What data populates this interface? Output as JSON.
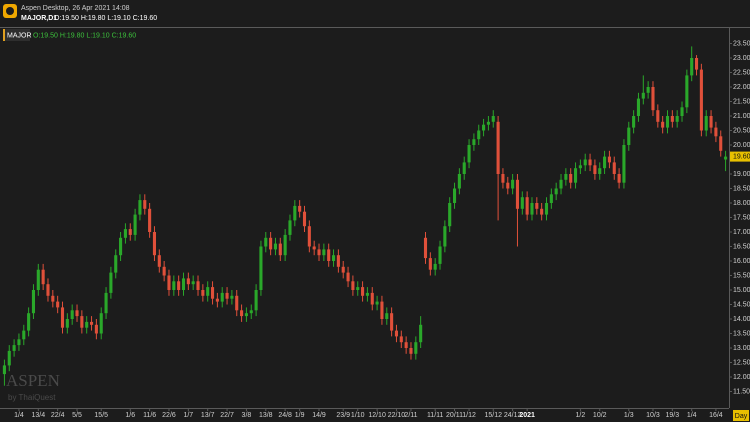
{
  "header": {
    "app_title": "Aspen Desktop, 26 Apr 2021 14:08",
    "symbol_timeframe": "MAJOR,D1",
    "ohlc_text": "O:19.50 H:19.80 L:19.10 C:19.60"
  },
  "watermark": {
    "brand": "ASPEN",
    "byline": "by ThaiQuest"
  },
  "timeframe_button": "Day",
  "chart_data": {
    "type": "candlestick",
    "categories": [
      null,
      null,
      null,
      "1/4",
      null,
      null,
      null,
      "13/4",
      null,
      null,
      null,
      "22/4",
      null,
      null,
      null,
      "5/5",
      null,
      null,
      null,
      null,
      "15/5",
      null,
      null,
      null,
      null,
      null,
      "1/6",
      null,
      null,
      null,
      "11/6",
      null,
      null,
      null,
      "22/6",
      null,
      null,
      null,
      "1/7",
      null,
      null,
      null,
      "13/7",
      null,
      null,
      null,
      "22/7",
      null,
      null,
      null,
      "3/8",
      null,
      null,
      null,
      "13/8",
      null,
      null,
      null,
      "24/8",
      null,
      null,
      "1/9",
      null,
      null,
      null,
      "14/9",
      null,
      null,
      null,
      null,
      "23/9",
      null,
      null,
      "1/10",
      null,
      null,
      null,
      "12/10",
      null,
      null,
      null,
      "22/10",
      null,
      null,
      "2/11",
      null,
      null,
      null,
      null,
      "11/11",
      null,
      null,
      null,
      "20/11",
      null,
      null,
      "1/12",
      null,
      null,
      null,
      null,
      "15/12",
      null,
      null,
      null,
      "24/12",
      null,
      null,
      "2021",
      null,
      null,
      null,
      null,
      null,
      null,
      null,
      null,
      null,
      null,
      "1/2",
      null,
      null,
      null,
      "10/2",
      null,
      null,
      null,
      null,
      null,
      "1/3",
      null,
      null,
      null,
      null,
      "10/3",
      null,
      null,
      null,
      "19/3",
      null,
      null,
      null,
      "1/4",
      null,
      null,
      null,
      null,
      "16/4",
      null,
      null
    ],
    "series": [
      {
        "name": "MAJOR",
        "open": [
          12.1,
          12.4,
          12.9,
          13.1,
          13.3,
          13.6,
          14.2,
          15.0,
          15.7,
          15.2,
          14.8,
          14.6,
          14.4,
          13.7,
          14.0,
          14.3,
          14.1,
          13.7,
          13.9,
          13.8,
          13.5,
          14.2,
          14.9,
          15.6,
          16.2,
          16.8,
          17.1,
          16.9,
          17.6,
          18.1,
          17.8,
          17.0,
          16.2,
          15.8,
          15.5,
          15.0,
          15.3,
          15.0,
          15.4,
          15.2,
          15.3,
          15.0,
          14.8,
          15.1,
          14.7,
          14.6,
          14.9,
          14.7,
          14.8,
          14.3,
          14.1,
          14.2,
          14.3,
          15.0,
          16.5,
          16.8,
          16.4,
          16.6,
          16.2,
          16.9,
          17.4,
          17.9,
          17.7,
          17.2,
          16.5,
          16.4,
          16.2,
          16.4,
          16.0,
          16.2,
          15.8,
          15.6,
          15.3,
          15.0,
          15.1,
          14.8,
          14.9,
          14.5,
          14.6,
          14.0,
          14.2,
          13.6,
          13.4,
          13.2,
          13.0,
          12.8,
          13.2,
          16.8,
          16.1,
          15.7,
          15.9,
          16.5,
          17.2,
          18.0,
          18.5,
          19.0,
          19.4,
          20.0,
          20.2,
          20.5,
          20.7,
          20.8,
          20.8,
          19.0,
          18.7,
          18.5,
          18.8,
          17.8,
          18.2,
          17.6,
          18.0,
          17.8,
          17.6,
          18.0,
          18.3,
          18.5,
          18.8,
          19.0,
          18.7,
          19.2,
          19.3,
          19.5,
          19.3,
          19.0,
          19.2,
          19.6,
          19.4,
          19.0,
          18.7,
          20.0,
          20.6,
          21.0,
          21.6,
          21.8,
          22.0,
          21.2,
          20.8,
          20.6,
          21.0,
          20.8,
          21.0,
          21.3,
          22.4,
          23.0,
          22.6,
          20.5,
          21.0,
          20.6,
          20.3,
          19.5
        ],
        "high": [
          12.6,
          13.1,
          13.3,
          13.5,
          13.8,
          14.4,
          15.2,
          15.9,
          15.9,
          15.4,
          15.0,
          14.8,
          14.6,
          14.2,
          14.5,
          14.5,
          14.3,
          14.1,
          14.1,
          14.0,
          14.4,
          15.1,
          15.8,
          16.4,
          17.0,
          17.3,
          17.3,
          17.8,
          18.3,
          18.3,
          18.0,
          17.2,
          16.4,
          16.0,
          15.7,
          15.5,
          15.5,
          15.6,
          15.6,
          15.5,
          15.5,
          15.2,
          15.3,
          15.3,
          14.9,
          15.1,
          15.1,
          15.0,
          15.0,
          14.5,
          14.4,
          14.5,
          15.2,
          16.7,
          17.0,
          17.0,
          16.8,
          16.8,
          17.1,
          17.6,
          18.1,
          18.1,
          17.9,
          17.4,
          16.7,
          16.6,
          16.6,
          16.6,
          16.4,
          16.4,
          16.0,
          15.8,
          15.5,
          15.3,
          15.3,
          15.1,
          15.1,
          14.8,
          14.8,
          14.4,
          14.4,
          13.8,
          13.6,
          13.4,
          13.2,
          13.4,
          14.1,
          17.0,
          16.3,
          16.1,
          16.7,
          17.4,
          18.2,
          18.7,
          19.2,
          19.6,
          20.2,
          20.4,
          20.7,
          20.9,
          21.0,
          21.2,
          21.0,
          19.2,
          18.9,
          19.0,
          19.0,
          18.4,
          18.4,
          18.2,
          18.2,
          18.0,
          18.2,
          18.5,
          18.7,
          19.0,
          19.2,
          19.2,
          19.4,
          19.5,
          19.7,
          19.7,
          19.5,
          19.4,
          19.8,
          19.8,
          19.6,
          19.2,
          20.2,
          20.8,
          21.2,
          21.8,
          22.4,
          22.2,
          22.2,
          21.4,
          21.0,
          21.2,
          21.2,
          21.2,
          21.5,
          22.6,
          23.4,
          23.1,
          22.8,
          21.2,
          21.2,
          20.8,
          20.5,
          19.8
        ],
        "low": [
          11.7,
          12.2,
          12.7,
          12.9,
          13.1,
          13.4,
          14.0,
          14.8,
          15.0,
          14.6,
          14.4,
          14.2,
          13.5,
          13.5,
          13.8,
          13.9,
          13.5,
          13.5,
          13.6,
          13.3,
          13.3,
          14.0,
          14.7,
          15.4,
          16.0,
          16.6,
          16.7,
          16.7,
          17.4,
          17.6,
          16.8,
          16.0,
          15.6,
          15.3,
          14.8,
          14.8,
          14.8,
          14.8,
          15.0,
          15.0,
          14.8,
          14.6,
          14.6,
          14.5,
          14.4,
          14.4,
          14.5,
          14.5,
          14.1,
          13.9,
          13.9,
          14.0,
          14.1,
          14.8,
          16.3,
          16.2,
          16.2,
          16.0,
          16.0,
          16.7,
          17.2,
          17.5,
          17.0,
          16.3,
          16.2,
          16.0,
          16.0,
          15.8,
          15.8,
          15.6,
          15.4,
          15.1,
          14.8,
          14.8,
          14.6,
          14.6,
          14.3,
          14.3,
          13.8,
          13.8,
          13.4,
          13.2,
          13.0,
          12.8,
          12.6,
          12.6,
          13.0,
          15.9,
          15.5,
          15.5,
          15.7,
          16.3,
          17.0,
          17.8,
          18.3,
          18.8,
          19.2,
          19.8,
          20.0,
          20.3,
          20.5,
          20.6,
          17.4,
          18.5,
          18.3,
          18.3,
          16.5,
          17.6,
          17.4,
          17.4,
          17.6,
          17.4,
          17.4,
          17.8,
          18.1,
          18.3,
          18.6,
          18.5,
          18.5,
          19.0,
          19.1,
          19.1,
          18.8,
          18.8,
          19.0,
          19.2,
          18.8,
          18.5,
          18.5,
          19.8,
          20.4,
          20.8,
          21.4,
          21.6,
          21.0,
          20.6,
          20.4,
          20.4,
          20.6,
          20.6,
          20.8,
          21.1,
          22.2,
          22.4,
          20.3,
          20.3,
          20.4,
          20.1,
          19.6,
          19.1
        ],
        "close": [
          12.4,
          12.9,
          13.1,
          13.3,
          13.6,
          14.2,
          15.0,
          15.7,
          15.2,
          14.8,
          14.6,
          14.4,
          13.7,
          14.0,
          14.3,
          14.1,
          13.7,
          13.9,
          13.8,
          13.5,
          14.2,
          14.9,
          15.6,
          16.2,
          16.8,
          17.1,
          16.9,
          17.6,
          18.1,
          17.8,
          17.0,
          16.2,
          15.8,
          15.5,
          15.0,
          15.3,
          15.0,
          15.4,
          15.2,
          15.3,
          15.0,
          14.8,
          15.1,
          14.7,
          14.6,
          14.9,
          14.7,
          14.8,
          14.3,
          14.1,
          14.2,
          14.3,
          15.0,
          16.5,
          16.8,
          16.4,
          16.6,
          16.2,
          16.9,
          17.4,
          17.9,
          17.7,
          17.2,
          16.5,
          16.4,
          16.2,
          16.4,
          16.0,
          16.2,
          15.8,
          15.6,
          15.3,
          15.0,
          15.1,
          14.8,
          14.9,
          14.5,
          14.6,
          14.0,
          14.2,
          13.6,
          13.4,
          13.2,
          13.0,
          12.8,
          13.2,
          13.8,
          16.1,
          15.7,
          15.9,
          16.5,
          17.2,
          18.0,
          18.5,
          19.0,
          19.4,
          20.0,
          20.2,
          20.5,
          20.7,
          20.8,
          21.0,
          19.0,
          18.7,
          18.5,
          18.8,
          17.8,
          18.2,
          17.6,
          18.0,
          17.8,
          17.6,
          18.0,
          18.3,
          18.5,
          18.8,
          19.0,
          18.7,
          19.2,
          19.3,
          19.5,
          19.3,
          19.0,
          19.2,
          19.6,
          19.4,
          19.0,
          18.7,
          20.0,
          20.6,
          21.0,
          21.6,
          21.8,
          22.0,
          21.2,
          20.8,
          20.6,
          21.0,
          20.8,
          21.0,
          21.3,
          22.4,
          23.0,
          22.6,
          20.5,
          21.0,
          20.6,
          20.3,
          19.8,
          19.6
        ]
      }
    ],
    "up_color": "#2aa82a",
    "down_color": "#e0503a",
    "ylim": [
      11.0,
      24.0
    ],
    "yticks": [
      {
        "value": 11.5,
        "label": "11.50"
      },
      {
        "value": 12.0,
        "label": "12.00"
      },
      {
        "value": 12.5,
        "label": "12.50"
      },
      {
        "value": 13.0,
        "label": "13.00"
      },
      {
        "value": 13.5,
        "label": "13.50"
      },
      {
        "value": 14.0,
        "label": "14.00"
      },
      {
        "value": 14.5,
        "label": "14.50"
      },
      {
        "value": 15.0,
        "label": "15.00"
      },
      {
        "value": 15.5,
        "label": "15.50"
      },
      {
        "value": 16.0,
        "label": "16.00"
      },
      {
        "value": 16.5,
        "label": "16.50"
      },
      {
        "value": 17.0,
        "label": "17.00"
      },
      {
        "value": 17.5,
        "label": "17.50"
      },
      {
        "value": 18.0,
        "label": "18.00"
      },
      {
        "value": 18.5,
        "label": "18.50"
      },
      {
        "value": 19.0,
        "label": "19.00"
      },
      {
        "value": 19.5,
        "label": "19.50"
      },
      {
        "value": 20.0,
        "label": "20.00"
      },
      {
        "value": 20.5,
        "label": "20.50"
      },
      {
        "value": 21.0,
        "label": "21.00"
      },
      {
        "value": 21.5,
        "label": "21.50"
      },
      {
        "value": 22.0,
        "label": "22.00"
      },
      {
        "value": 22.5,
        "label": "22.50"
      },
      {
        "value": 23.0,
        "label": "23.00"
      },
      {
        "value": 23.5,
        "label": "23.50"
      }
    ],
    "last_price": {
      "value": 19.6,
      "label": "19.60"
    }
  }
}
